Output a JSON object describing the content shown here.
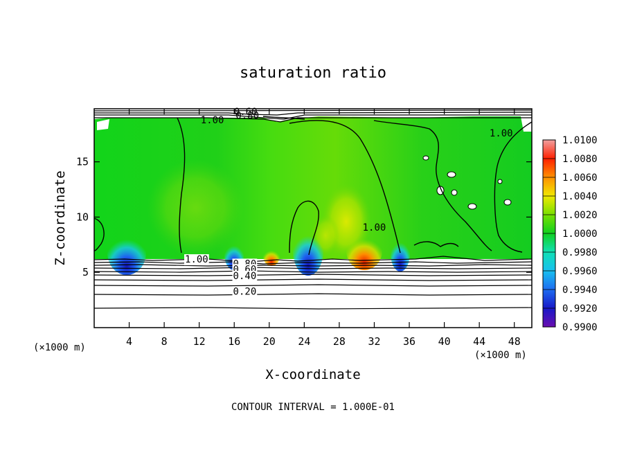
{
  "chart_data": {
    "type": "heatmap",
    "title": "saturation ratio",
    "xlabel": "X-coordinate",
    "ylabel": "Z-coordinate",
    "x_unit_note": "(×1000 m)",
    "x_unit_note_right": "(×1000 m)",
    "footer": "CONTOUR INTERVAL = 1.000E-01",
    "xlim": [
      0,
      50
    ],
    "ylim": [
      0,
      19.8
    ],
    "x_ticks": [
      4,
      8,
      12,
      16,
      20,
      24,
      28,
      32,
      36,
      40,
      44,
      48
    ],
    "x_tick_labels": [
      "4",
      "8",
      "12",
      "16",
      "20",
      "24",
      "28",
      "32",
      "36",
      "40",
      "44",
      "48"
    ],
    "y_ticks": [
      5,
      10,
      15
    ],
    "y_tick_labels": [
      "5",
      "10",
      "15"
    ],
    "colorbar": {
      "levels": [
        0.99,
        0.992,
        0.994,
        0.996,
        0.998,
        1.0,
        1.002,
        1.004,
        1.006,
        1.008,
        1.01
      ],
      "labels": [
        "0.9900",
        "0.9920",
        "0.9940",
        "0.9960",
        "0.9980",
        "1.0000",
        "1.0020",
        "1.0040",
        "1.0060",
        "1.0080",
        "1.0100"
      ],
      "colors": [
        "#6a0fb0",
        "#1818c8",
        "#1e6cf0",
        "#18c0f0",
        "#10e0b4",
        "#10d020",
        "#78e000",
        "#f0e800",
        "#ff9000",
        "#ff2000",
        "#f0a0a0"
      ]
    },
    "contour_labels": [
      {
        "text": "0.60",
        "x": 17.3,
        "y": 19.55
      },
      {
        "text": "0.80",
        "x": 17.5,
        "y": 19.2
      },
      {
        "text": "1.00",
        "x": 13.5,
        "y": 18.8
      },
      {
        "text": "1.00",
        "x": 46.5,
        "y": 17.6
      },
      {
        "text": "1.00",
        "x": 32.0,
        "y": 9.1
      },
      {
        "text": "1.00",
        "x": 11.7,
        "y": 6.2
      },
      {
        "text": "0.80",
        "x": 17.2,
        "y": 5.8
      },
      {
        "text": "0.60",
        "x": 17.2,
        "y": 5.3
      },
      {
        "text": "0.40",
        "x": 17.2,
        "y": 4.7
      },
      {
        "text": "0.20",
        "x": 17.2,
        "y": 3.3
      }
    ],
    "stable_layer_contours": [
      0.9,
      0.8,
      0.7,
      0.6,
      0.5,
      0.4,
      0.3,
      0.2,
      0.1
    ]
  }
}
